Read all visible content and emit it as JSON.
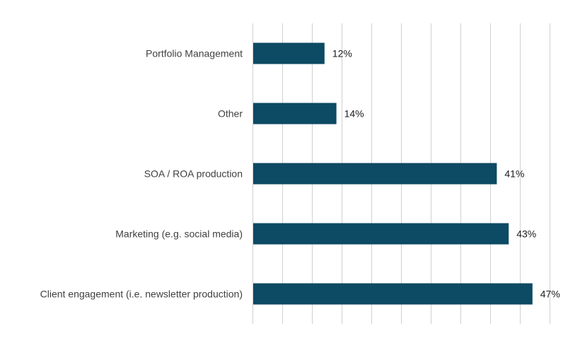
{
  "chart_data": {
    "type": "bar",
    "orientation": "horizontal",
    "categories": [
      "Portfolio Management",
      "Other",
      "SOA / ROA production",
      "Marketing (e.g. social media)",
      "Client engagement (i.e. newsletter production)"
    ],
    "values": [
      12,
      14,
      41,
      43,
      47
    ],
    "value_labels": [
      "12%",
      "14%",
      "41%",
      "43%",
      "47%"
    ],
    "xlim": [
      0,
      50
    ],
    "grid": true,
    "legend": "none",
    "bar_color": "#0d4a63"
  }
}
